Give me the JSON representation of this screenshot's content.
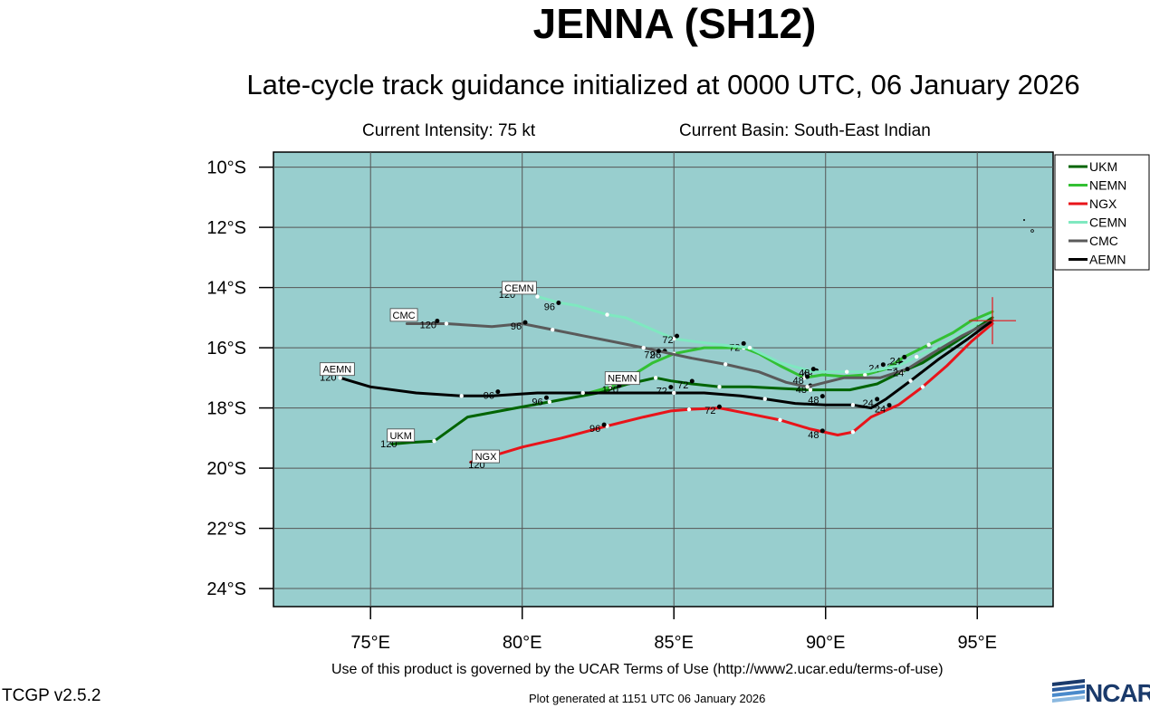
{
  "header": {
    "title": "JENNA (SH12)",
    "subtitle": "Late-cycle track guidance initialized at 0000 UTC, 06 January 2026",
    "intensity": "Current Intensity: 75 kt",
    "basin": "Current Basin: South-East Indian"
  },
  "footer": {
    "terms": "Use of this product is governed by the UCAR Terms of Use (http://www2.ucar.edu/terms-of-use)",
    "version": "TCGP v2.5.2",
    "generated": "Plot generated at 1151 UTC   06 January 2026",
    "logo_text": "NCAR"
  },
  "map": {
    "lon_range": [
      71.8,
      97.5
    ],
    "lat_range": [
      -24.6,
      -9.5
    ],
    "lon_ticks": [
      75,
      80,
      85,
      90,
      95
    ],
    "lon_tick_labels": [
      "75°E",
      "80°E",
      "85°E",
      "90°E",
      "95°E"
    ],
    "lat_ticks": [
      -10,
      -12,
      -14,
      -16,
      -18,
      -20,
      -22,
      -24
    ],
    "lat_tick_labels": [
      "10°S",
      "12°S",
      "14°S",
      "16°S",
      "18°S",
      "20°S",
      "22°S",
      "24°S"
    ],
    "ocean_color": "#98cece",
    "grid_color": "#555555",
    "current_position": {
      "lon": 95.5,
      "lat": -15.1
    }
  },
  "legend": [
    {
      "name": "UKM",
      "color": "#006400"
    },
    {
      "name": "NEMN",
      "color": "#33c033"
    },
    {
      "name": "NGX",
      "color": "#e8141a"
    },
    {
      "name": "CEMN",
      "color": "#7fe8c0"
    },
    {
      "name": "CMC",
      "color": "#5a5a5a"
    },
    {
      "name": "AEMN",
      "color": "#000000"
    }
  ],
  "chart_data": {
    "type": "map-tracks",
    "tracks": [
      {
        "name": "UKM",
        "color": "#006400",
        "points": [
          [
            95.5,
            -15.0
          ],
          [
            94.3,
            -15.8
          ],
          [
            93.2,
            -16.5
          ],
          [
            92.5,
            -16.8
          ],
          [
            91.7,
            -17.2
          ],
          [
            90.8,
            -17.4
          ],
          [
            89.5,
            -17.4
          ],
          [
            88.5,
            -17.35
          ],
          [
            87.5,
            -17.3
          ],
          [
            86.5,
            -17.3
          ],
          [
            85.6,
            -17.2
          ],
          [
            84.9,
            -17.1
          ],
          [
            84.4,
            -17.0
          ],
          [
            83.5,
            -17.2
          ],
          [
            82.5,
            -17.5
          ],
          [
            80.9,
            -17.8
          ],
          [
            79.8,
            -18.0
          ],
          [
            78.2,
            -18.3
          ],
          [
            77.1,
            -19.1
          ],
          [
            76.3,
            -19.15
          ],
          [
            75.7,
            -19.2
          ]
        ],
        "labels": [
          {
            "text": "24",
            "lon": 92.2,
            "lat": -16.75
          },
          {
            "text": "48",
            "lon": 89.4,
            "lat": -17.0
          },
          {
            "text": "72",
            "lon": 85.3,
            "lat": -17.35
          },
          {
            "text": "96",
            "lon": 80.5,
            "lat": -17.9
          },
          {
            "text": "120",
            "lon": 75.6,
            "lat": -19.3
          }
        ],
        "end_label": {
          "text": "UKM",
          "lon": 76.0,
          "lat": -19.0
        }
      },
      {
        "name": "NEMN",
        "color": "#33c033",
        "points": [
          [
            95.5,
            -14.8
          ],
          [
            94.8,
            -15.1
          ],
          [
            94.2,
            -15.5
          ],
          [
            93.4,
            -15.9
          ],
          [
            92.6,
            -16.3
          ],
          [
            92.0,
            -16.7
          ],
          [
            91.3,
            -16.9
          ],
          [
            90.6,
            -16.95
          ],
          [
            89.9,
            -16.9
          ],
          [
            89.3,
            -17.0
          ],
          [
            88.5,
            -16.6
          ],
          [
            87.8,
            -16.2
          ],
          [
            87.3,
            -16.0
          ],
          [
            86.9,
            -16.0
          ],
          [
            86.0,
            -16.0
          ],
          [
            85.0,
            -16.2
          ],
          [
            84.3,
            -16.5
          ],
          [
            83.5,
            -17.0
          ],
          [
            82.9,
            -17.3
          ],
          [
            82.2,
            -17.5
          ]
        ],
        "labels": [
          {
            "text": "24",
            "lon": 91.6,
            "lat": -16.8
          },
          {
            "text": "48",
            "lon": 89.2,
            "lat": -17.5
          },
          {
            "text": "72",
            "lon": 87.0,
            "lat": -16.1
          },
          {
            "text": "96",
            "lon": 84.4,
            "lat": -16.35
          },
          {
            "text": "120",
            "lon": 82.9,
            "lat": -17.5
          }
        ],
        "end_label": {
          "text": "NEMN",
          "lon": 83.3,
          "lat": -17.1
        }
      },
      {
        "name": "NGX",
        "color": "#e8141a",
        "points": [
          [
            95.5,
            -15.2
          ],
          [
            94.8,
            -15.8
          ],
          [
            94.0,
            -16.6
          ],
          [
            93.2,
            -17.3
          ],
          [
            92.4,
            -17.9
          ],
          [
            91.5,
            -18.3
          ],
          [
            90.9,
            -18.8
          ],
          [
            90.4,
            -18.9
          ],
          [
            89.5,
            -18.7
          ],
          [
            88.5,
            -18.4
          ],
          [
            87.5,
            -18.2
          ],
          [
            86.5,
            -18.0
          ],
          [
            85.5,
            -18.05
          ],
          [
            84.9,
            -18.1
          ],
          [
            84.0,
            -18.3
          ],
          [
            82.8,
            -18.6
          ],
          [
            81.3,
            -19.0
          ],
          [
            80.0,
            -19.3
          ],
          [
            79.0,
            -19.6
          ],
          [
            78.3,
            -19.8
          ]
        ],
        "labels": [
          {
            "text": "24",
            "lon": 91.8,
            "lat": -18.15
          },
          {
            "text": "48",
            "lon": 89.6,
            "lat": -19.0
          },
          {
            "text": "72",
            "lon": 86.2,
            "lat": -18.2
          },
          {
            "text": "96",
            "lon": 82.4,
            "lat": -18.8
          },
          {
            "text": "120",
            "lon": 78.5,
            "lat": -20.0
          }
        ],
        "end_label": {
          "text": "NGX",
          "lon": 78.8,
          "lat": -19.7
        }
      },
      {
        "name": "CEMN",
        "color": "#7fe8c0",
        "points": [
          [
            95.5,
            -14.9
          ],
          [
            94.8,
            -15.3
          ],
          [
            94.0,
            -15.8
          ],
          [
            93.0,
            -16.3
          ],
          [
            92.4,
            -16.6
          ],
          [
            91.4,
            -16.8
          ],
          [
            90.7,
            -16.8
          ],
          [
            89.6,
            -16.8
          ],
          [
            88.5,
            -16.5
          ],
          [
            87.5,
            -16.0
          ],
          [
            86.5,
            -15.9
          ],
          [
            85.7,
            -15.8
          ],
          [
            85.0,
            -15.7
          ],
          [
            84.3,
            -15.4
          ],
          [
            83.4,
            -15.0
          ],
          [
            82.8,
            -14.9
          ],
          [
            81.8,
            -14.6
          ],
          [
            81.2,
            -14.5
          ],
          [
            80.5,
            -14.3
          ]
        ],
        "labels": [
          {
            "text": "24",
            "lon": 92.3,
            "lat": -16.55
          },
          {
            "text": "48",
            "lon": 89.3,
            "lat": -16.95
          },
          {
            "text": "72",
            "lon": 84.8,
            "lat": -15.85
          },
          {
            "text": "96",
            "lon": 80.9,
            "lat": -14.75
          },
          {
            "text": "120",
            "lon": 79.5,
            "lat": -14.35
          }
        ],
        "end_label": {
          "text": "CEMN",
          "lon": 79.9,
          "lat": -14.1
        }
      },
      {
        "name": "CMC",
        "color": "#5a5a5a",
        "points": [
          [
            95.5,
            -15.1
          ],
          [
            94.5,
            -15.6
          ],
          [
            93.5,
            -16.2
          ],
          [
            92.7,
            -16.7
          ],
          [
            91.8,
            -17.0
          ],
          [
            90.6,
            -17.0
          ],
          [
            89.4,
            -17.3
          ],
          [
            88.7,
            -17.15
          ],
          [
            87.8,
            -16.8
          ],
          [
            86.7,
            -16.55
          ],
          [
            85.6,
            -16.35
          ],
          [
            84.9,
            -16.2
          ],
          [
            84.0,
            -16.0
          ],
          [
            83.0,
            -15.8
          ],
          [
            82.0,
            -15.6
          ],
          [
            81.0,
            -15.4
          ],
          [
            80.0,
            -15.2
          ],
          [
            79.0,
            -15.3
          ],
          [
            77.5,
            -15.2
          ],
          [
            76.2,
            -15.2
          ]
        ],
        "labels": [
          {
            "text": "24",
            "lon": 92.4,
            "lat": -16.95
          },
          {
            "text": "48",
            "lon": 89.1,
            "lat": -17.2
          },
          {
            "text": "72",
            "lon": 84.2,
            "lat": -16.35
          },
          {
            "text": "96",
            "lon": 79.8,
            "lat": -15.4
          },
          {
            "text": "120",
            "lon": 76.9,
            "lat": -15.35
          }
        ],
        "end_label": {
          "text": "CMC",
          "lon": 76.1,
          "lat": -15.0
        }
      },
      {
        "name": "AEMN",
        "color": "#000000",
        "points": [
          [
            95.5,
            -15.1
          ],
          [
            94.7,
            -15.7
          ],
          [
            93.7,
            -16.4
          ],
          [
            92.8,
            -17.1
          ],
          [
            92.0,
            -17.7
          ],
          [
            91.5,
            -18.0
          ],
          [
            90.9,
            -17.9
          ],
          [
            90.0,
            -17.9
          ],
          [
            89.0,
            -17.85
          ],
          [
            88.0,
            -17.7
          ],
          [
            87.2,
            -17.6
          ],
          [
            86.0,
            -17.5
          ],
          [
            85.0,
            -17.5
          ],
          [
            84.0,
            -17.5
          ],
          [
            83.0,
            -17.5
          ],
          [
            82.0,
            -17.5
          ],
          [
            80.5,
            -17.5
          ],
          [
            79.0,
            -17.6
          ],
          [
            78.0,
            -17.6
          ],
          [
            76.5,
            -17.5
          ],
          [
            75.0,
            -17.3
          ],
          [
            74.0,
            -17.0
          ]
        ],
        "labels": [
          {
            "text": "24",
            "lon": 91.4,
            "lat": -17.95
          },
          {
            "text": "48",
            "lon": 89.6,
            "lat": -17.85
          },
          {
            "text": "72",
            "lon": 84.6,
            "lat": -17.55
          },
          {
            "text": "96",
            "lon": 78.9,
            "lat": -17.7
          },
          {
            "text": "120",
            "lon": 73.6,
            "lat": -17.1
          }
        ],
        "end_label": {
          "text": "AEMN",
          "lon": 73.9,
          "lat": -16.8
        }
      }
    ]
  }
}
